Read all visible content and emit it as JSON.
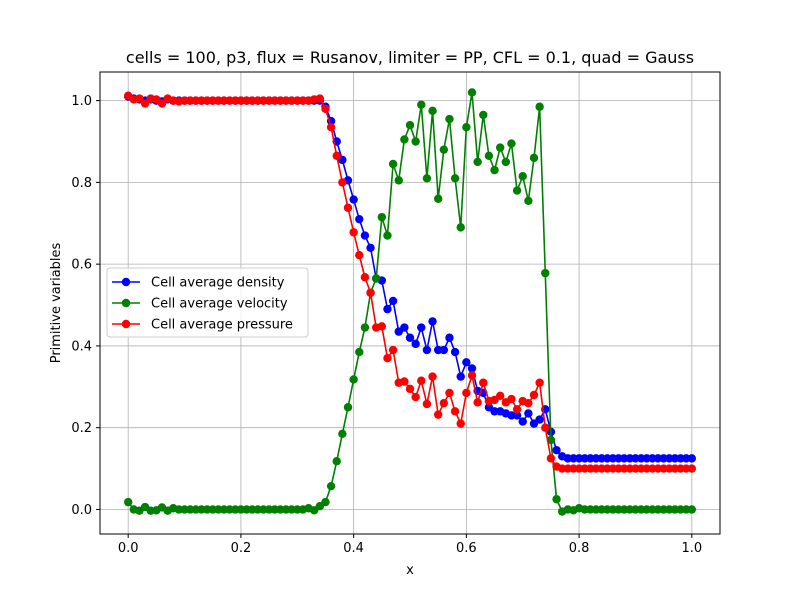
{
  "chart_data": {
    "type": "line",
    "title": "cells = 100, p3, flux = Rusanov, limiter = PP, CFL = 0.1, quad = Gauss",
    "xlabel": "x",
    "ylabel": "Primitive variables",
    "xlim": [
      -0.05,
      1.05
    ],
    "ylim": [
      -0.06,
      1.07
    ],
    "xticks": [
      0.0,
      0.2,
      0.4,
      0.6,
      0.8,
      1.0
    ],
    "xtick_labels": [
      "0.0",
      "0.2",
      "0.4",
      "0.6",
      "0.8",
      "1.0"
    ],
    "yticks": [
      0.0,
      0.2,
      0.4,
      0.6,
      0.8,
      1.0
    ],
    "ytick_labels": [
      "0.0",
      "0.2",
      "0.4",
      "0.6",
      "0.8",
      "1.0"
    ],
    "grid": true,
    "legend_position": "center-left",
    "series": [
      {
        "name": "Cell average density",
        "color": "#0000ff",
        "x": [
          0.0,
          0.01,
          0.02,
          0.03,
          0.04,
          0.05,
          0.06,
          0.07,
          0.08,
          0.09,
          0.1,
          0.11,
          0.12,
          0.13,
          0.14,
          0.15,
          0.16,
          0.17,
          0.18,
          0.19,
          0.2,
          0.21,
          0.22,
          0.23,
          0.24,
          0.25,
          0.26,
          0.27,
          0.28,
          0.29,
          0.3,
          0.31,
          0.32,
          0.33,
          0.34,
          0.35,
          0.36,
          0.37,
          0.38,
          0.39,
          0.4,
          0.41,
          0.42,
          0.43,
          0.44,
          0.45,
          0.46,
          0.47,
          0.48,
          0.49,
          0.5,
          0.51,
          0.52,
          0.53,
          0.54,
          0.55,
          0.56,
          0.57,
          0.58,
          0.59,
          0.6,
          0.61,
          0.62,
          0.63,
          0.64,
          0.65,
          0.66,
          0.67,
          0.68,
          0.69,
          0.7,
          0.71,
          0.72,
          0.73,
          0.74,
          0.75,
          0.76,
          0.77,
          0.78,
          0.79,
          0.8,
          0.81,
          0.82,
          0.83,
          0.84,
          0.85,
          0.86,
          0.87,
          0.88,
          0.89,
          0.9,
          0.91,
          0.92,
          0.93,
          0.94,
          0.95,
          0.96,
          0.97,
          0.98,
          0.99,
          1.0
        ],
        "y": [
          1.01,
          1.005,
          1.003,
          1.0,
          1.003,
          1.0,
          0.998,
          1.003,
          1.0,
          1.0,
          1.0,
          1.0,
          1.0,
          1.0,
          1.0,
          1.0,
          1.0,
          1.0,
          1.0,
          1.0,
          1.0,
          1.0,
          1.0,
          1.0,
          1.0,
          1.0,
          1.0,
          1.0,
          1.0,
          1.0,
          1.0,
          1.0,
          1.0,
          1.0,
          1.0,
          0.985,
          0.95,
          0.9,
          0.855,
          0.805,
          0.758,
          0.71,
          0.67,
          0.64,
          0.565,
          0.56,
          0.49,
          0.51,
          0.435,
          0.445,
          0.42,
          0.405,
          0.445,
          0.39,
          0.46,
          0.39,
          0.39,
          0.42,
          0.385,
          0.325,
          0.36,
          0.345,
          0.29,
          0.285,
          0.25,
          0.24,
          0.24,
          0.235,
          0.23,
          0.23,
          0.215,
          0.235,
          0.21,
          0.22,
          0.245,
          0.19,
          0.145,
          0.13,
          0.125,
          0.125,
          0.125,
          0.125,
          0.125,
          0.125,
          0.125,
          0.125,
          0.125,
          0.125,
          0.125,
          0.125,
          0.125,
          0.125,
          0.125,
          0.125,
          0.125,
          0.125,
          0.125,
          0.125,
          0.125,
          0.125,
          0.125
        ]
      },
      {
        "name": "Cell average velocity",
        "color": "#008000",
        "x": [
          0.0,
          0.01,
          0.02,
          0.03,
          0.04,
          0.05,
          0.06,
          0.07,
          0.08,
          0.09,
          0.1,
          0.11,
          0.12,
          0.13,
          0.14,
          0.15,
          0.16,
          0.17,
          0.18,
          0.19,
          0.2,
          0.21,
          0.22,
          0.23,
          0.24,
          0.25,
          0.26,
          0.27,
          0.28,
          0.29,
          0.3,
          0.31,
          0.32,
          0.33,
          0.34,
          0.35,
          0.36,
          0.37,
          0.38,
          0.39,
          0.4,
          0.41,
          0.42,
          0.43,
          0.44,
          0.45,
          0.46,
          0.47,
          0.48,
          0.49,
          0.5,
          0.51,
          0.52,
          0.53,
          0.54,
          0.55,
          0.56,
          0.57,
          0.58,
          0.59,
          0.6,
          0.61,
          0.62,
          0.63,
          0.64,
          0.65,
          0.66,
          0.67,
          0.68,
          0.69,
          0.7,
          0.71,
          0.72,
          0.73,
          0.74,
          0.75,
          0.76,
          0.77,
          0.78,
          0.79,
          0.8,
          0.81,
          0.82,
          0.83,
          0.84,
          0.85,
          0.86,
          0.87,
          0.88,
          0.89,
          0.9,
          0.91,
          0.92,
          0.93,
          0.94,
          0.95,
          0.96,
          0.97,
          0.98,
          0.99,
          1.0
        ],
        "y": [
          0.018,
          0.0,
          -0.003,
          0.006,
          -0.003,
          -0.002,
          0.005,
          -0.003,
          0.003,
          0.0,
          0.0,
          0.0,
          0.0,
          0.0,
          0.0,
          0.0,
          0.0,
          0.0,
          0.0,
          0.0,
          0.0,
          0.0,
          0.0,
          0.0,
          0.0,
          0.0,
          0.0,
          0.0,
          0.0,
          0.0,
          0.0,
          0.0,
          0.003,
          -0.002,
          0.008,
          0.018,
          0.057,
          0.118,
          0.185,
          0.25,
          0.318,
          0.385,
          0.445,
          0.53,
          0.565,
          0.715,
          0.67,
          0.845,
          0.805,
          0.905,
          0.94,
          0.9,
          0.99,
          0.81,
          0.975,
          0.76,
          0.88,
          0.955,
          0.81,
          0.69,
          0.935,
          1.02,
          0.85,
          0.965,
          0.865,
          0.83,
          0.885,
          0.85,
          0.895,
          0.78,
          0.815,
          0.755,
          0.86,
          0.985,
          0.578,
          0.17,
          0.025,
          -0.005,
          0.0,
          -0.002,
          0.003,
          0.0,
          0.0,
          0.0,
          0.0,
          0.0,
          0.0,
          0.0,
          0.0,
          0.0,
          0.0,
          0.0,
          0.0,
          0.0,
          0.0,
          0.0,
          0.0,
          0.0,
          0.0,
          0.0,
          0.0
        ]
      },
      {
        "name": "Cell average pressure",
        "color": "#ff0000",
        "x": [
          0.0,
          0.01,
          0.02,
          0.03,
          0.04,
          0.05,
          0.06,
          0.07,
          0.08,
          0.09,
          0.1,
          0.11,
          0.12,
          0.13,
          0.14,
          0.15,
          0.16,
          0.17,
          0.18,
          0.19,
          0.2,
          0.21,
          0.22,
          0.23,
          0.24,
          0.25,
          0.26,
          0.27,
          0.28,
          0.29,
          0.3,
          0.31,
          0.32,
          0.33,
          0.34,
          0.35,
          0.36,
          0.37,
          0.38,
          0.39,
          0.4,
          0.41,
          0.42,
          0.43,
          0.44,
          0.45,
          0.46,
          0.47,
          0.48,
          0.49,
          0.5,
          0.51,
          0.52,
          0.53,
          0.54,
          0.55,
          0.56,
          0.57,
          0.58,
          0.59,
          0.6,
          0.61,
          0.62,
          0.63,
          0.64,
          0.65,
          0.66,
          0.67,
          0.68,
          0.69,
          0.7,
          0.71,
          0.72,
          0.73,
          0.74,
          0.75,
          0.76,
          0.77,
          0.78,
          0.79,
          0.8,
          0.81,
          0.82,
          0.83,
          0.84,
          0.85,
          0.86,
          0.87,
          0.88,
          0.89,
          0.9,
          0.91,
          0.92,
          0.93,
          0.94,
          0.95,
          0.96,
          0.97,
          0.98,
          0.99,
          1.0
        ],
        "y": [
          1.012,
          1.003,
          1.005,
          0.993,
          1.005,
          1.003,
          0.993,
          1.005,
          1.0,
          0.998,
          1.0,
          1.0,
          1.0,
          1.0,
          1.0,
          1.0,
          1.0,
          1.0,
          1.0,
          1.0,
          1.0,
          1.0,
          1.0,
          1.0,
          1.0,
          1.0,
          1.0,
          1.0,
          1.0,
          1.0,
          1.0,
          1.0,
          1.0,
          1.003,
          1.005,
          0.98,
          0.935,
          0.865,
          0.8,
          0.738,
          0.678,
          0.622,
          0.568,
          0.53,
          0.445,
          0.448,
          0.37,
          0.39,
          0.31,
          0.313,
          0.295,
          0.275,
          0.315,
          0.258,
          0.325,
          0.232,
          0.26,
          0.285,
          0.24,
          0.21,
          0.285,
          0.328,
          0.262,
          0.31,
          0.265,
          0.268,
          0.278,
          0.262,
          0.27,
          0.245,
          0.265,
          0.26,
          0.28,
          0.31,
          0.2,
          0.125,
          0.105,
          0.1,
          0.1,
          0.1,
          0.1,
          0.1,
          0.1,
          0.1,
          0.1,
          0.1,
          0.1,
          0.1,
          0.1,
          0.1,
          0.1,
          0.1,
          0.1,
          0.1,
          0.1,
          0.1,
          0.1,
          0.1,
          0.1,
          0.1,
          0.1
        ]
      }
    ]
  }
}
